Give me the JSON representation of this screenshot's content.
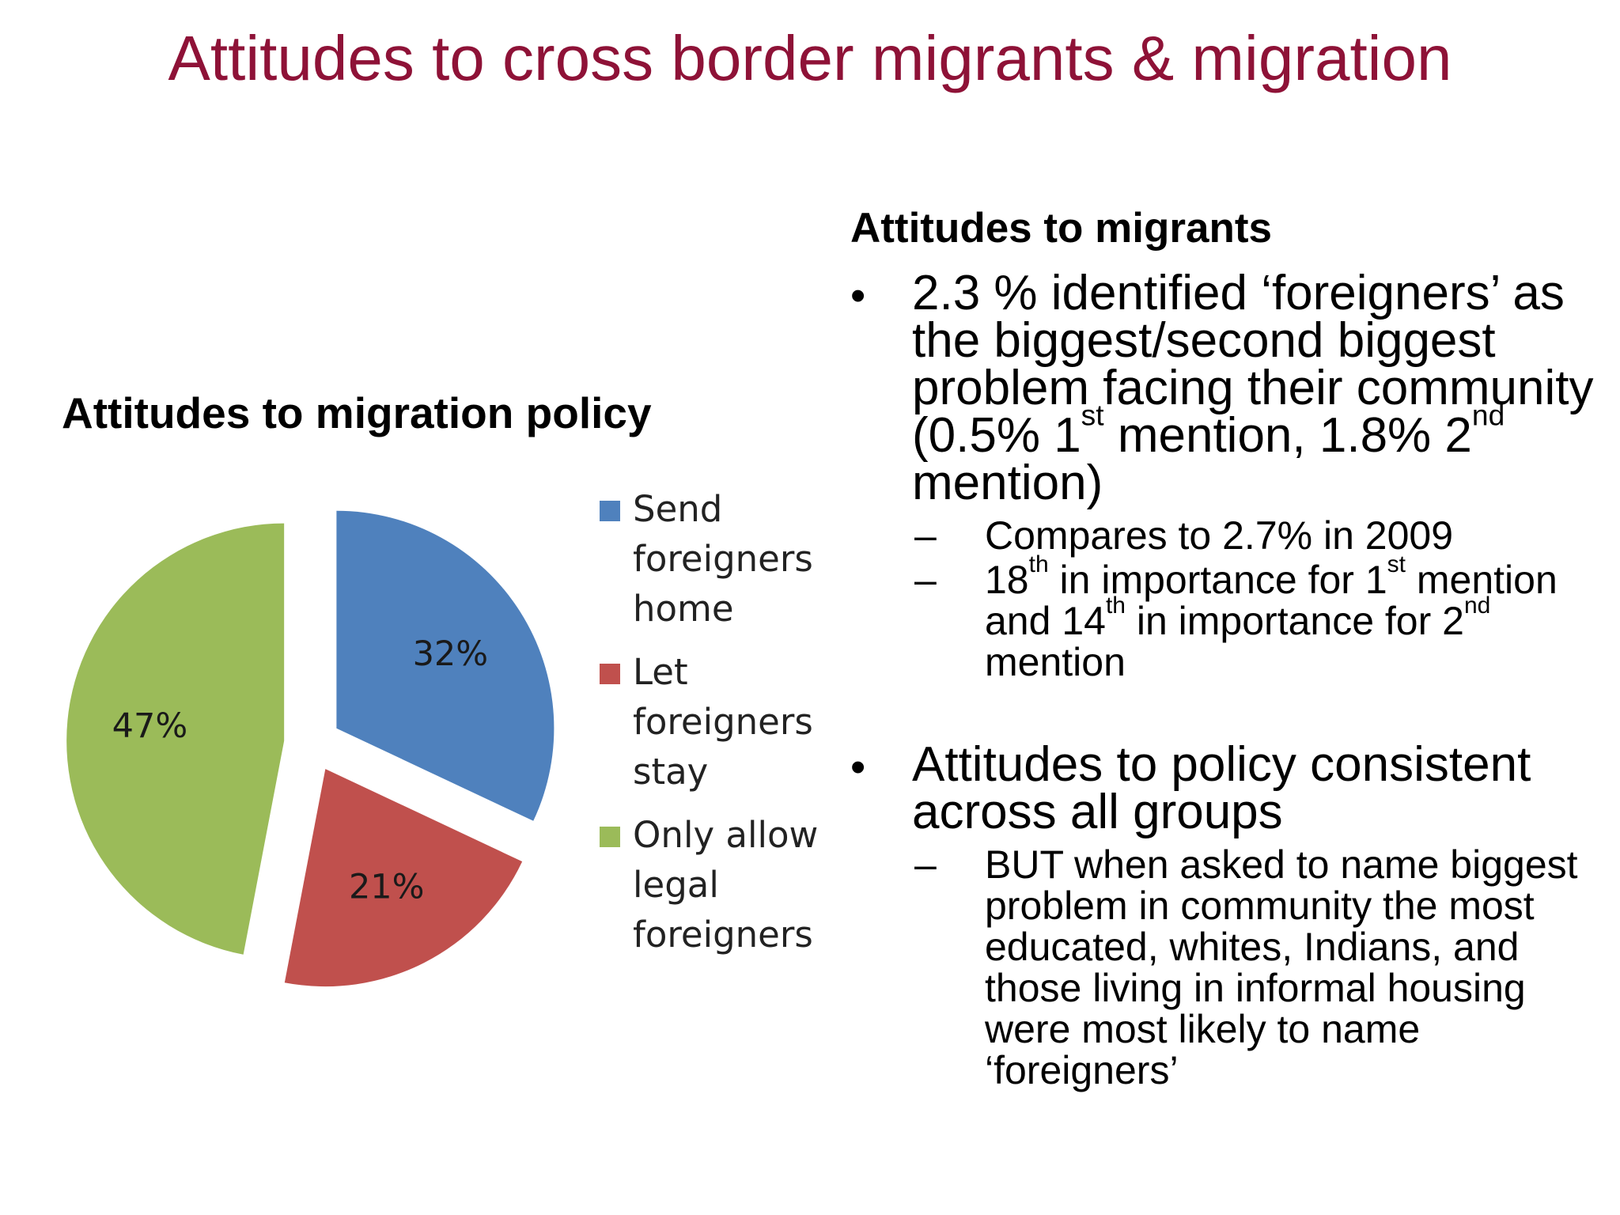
{
  "slide": {
    "title": "Attitudes to cross border migrants & migration"
  },
  "chart_data": {
    "type": "pie",
    "title": "Attitudes to migration policy",
    "exploded": true,
    "categories": [
      "Send foreigners home",
      "Let foreigners stay",
      "Only allow legal foreigners"
    ],
    "values": [
      32,
      21,
      47
    ],
    "data_labels": [
      "32%",
      "21%",
      "47%"
    ],
    "colors": [
      "#4f81bd",
      "#c0504d",
      "#9bbb59"
    ],
    "legend_position": "right"
  },
  "right_panel": {
    "heading": "Attitudes to migrants",
    "bullet_mark": "•",
    "dash_mark": "–",
    "bullets": [
      {
        "parts": [
          "2.3 % identified ‘foreigners’ as the biggest/second biggest problem facing their community (0.5% 1",
          "st",
          " mention, 1.8% 2",
          "nd",
          " mention)"
        ],
        "subitems": [
          {
            "parts": [
              "Compares to 2.7% in 2009"
            ]
          },
          {
            "parts": [
              "18",
              "th",
              " in importance for 1",
              "st",
              " mention and 14",
              "th",
              " in importance for 2",
              "nd",
              " mention"
            ]
          }
        ]
      },
      {
        "parts": [
          "Attitudes to policy consistent across all groups"
        ],
        "subitems": [
          {
            "parts": [
              "BUT when asked to name biggest problem in community the most educated, whites, Indians, and those living in informal housing were most likely to name ‘foreigners’"
            ]
          }
        ]
      }
    ]
  }
}
